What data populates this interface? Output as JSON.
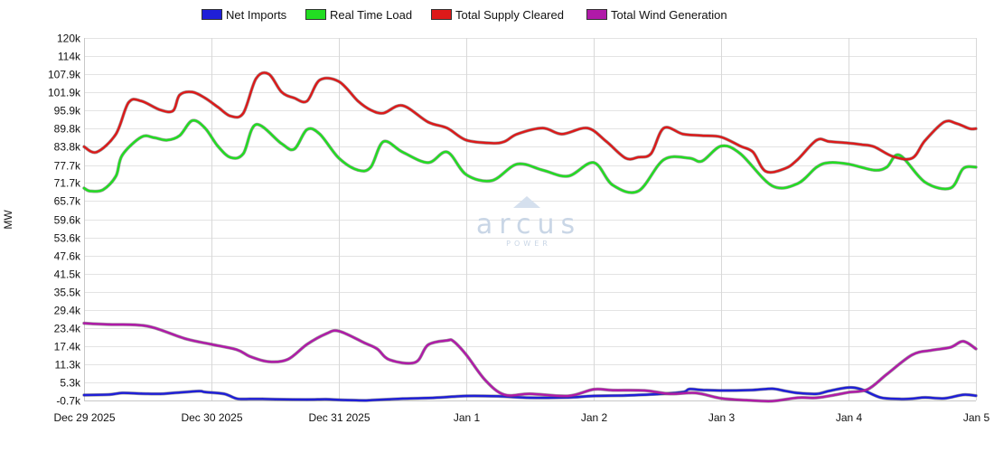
{
  "chart_data": {
    "type": "line",
    "ylabel": "MW",
    "ylim": [
      -700,
      120000
    ],
    "y_ticks": [
      "120k",
      "114k",
      "107.9k",
      "101.9k",
      "95.9k",
      "89.8k",
      "83.8k",
      "77.7k",
      "71.7k",
      "65.7k",
      "59.6k",
      "53.6k",
      "47.6k",
      "41.5k",
      "35.5k",
      "29.4k",
      "23.4k",
      "17.4k",
      "11.3k",
      "5.3k",
      "-0.7k"
    ],
    "y_tick_values": [
      120000,
      114000,
      107900,
      101900,
      95900,
      89800,
      83800,
      77700,
      71700,
      65700,
      59600,
      53600,
      47600,
      41500,
      35500,
      29400,
      23400,
      17400,
      11300,
      5300,
      -700
    ],
    "x_ticks": [
      "Dec 29 2025",
      "Dec 30 2025",
      "Dec 31 2025",
      "Jan 1",
      "Jan 2",
      "Jan 3",
      "Jan 4",
      "Jan 5"
    ],
    "x_unit": "days",
    "x_range": [
      0,
      7
    ],
    "grid": true,
    "legend_position": "top",
    "watermark": {
      "brand": "arcus",
      "tagline": "POWER"
    },
    "series": [
      {
        "name": "Net Imports",
        "color": "#1f1fd8",
        "x": [
          0,
          0.2,
          0.3,
          0.45,
          0.6,
          0.7,
          0.9,
          0.95,
          1.1,
          1.2,
          1.3,
          1.4,
          1.5,
          1.75,
          1.9,
          2.0,
          2.1,
          2.2,
          2.25,
          2.4,
          2.5,
          2.75,
          3.0,
          3.25,
          3.5,
          3.8,
          4.0,
          4.25,
          4.5,
          4.7,
          4.75,
          4.85,
          5.0,
          5.25,
          5.4,
          5.5,
          5.6,
          5.75,
          5.85,
          6.0,
          6.1,
          6.25,
          6.4,
          6.5,
          6.6,
          6.75,
          6.9,
          7.0
        ],
        "y": [
          1100,
          1300,
          1800,
          1600,
          1500,
          1800,
          2400,
          2100,
          1500,
          -100,
          -200,
          -200,
          -300,
          -400,
          -300,
          -500,
          -600,
          -700,
          -600,
          -300,
          -100,
          200,
          800,
          700,
          200,
          300,
          800,
          1000,
          1400,
          2100,
          3100,
          2800,
          2600,
          2800,
          3200,
          2500,
          1800,
          1500,
          2500,
          3600,
          3000,
          300,
          -200,
          -100,
          300,
          0,
          1200,
          900
        ]
      },
      {
        "name": "Real Time Load",
        "color": "#22dd22",
        "x": [
          0,
          0.05,
          0.15,
          0.25,
          0.3,
          0.45,
          0.55,
          0.65,
          0.75,
          0.85,
          0.95,
          1.05,
          1.15,
          1.25,
          1.35,
          1.55,
          1.65,
          1.75,
          1.85,
          2.0,
          2.15,
          2.25,
          2.35,
          2.5,
          2.7,
          2.85,
          3.0,
          3.2,
          3.4,
          3.6,
          3.8,
          4.0,
          4.15,
          4.35,
          4.55,
          4.75,
          4.85,
          5.0,
          5.15,
          5.4,
          5.6,
          5.75,
          5.85,
          6.0,
          6.2,
          6.3,
          6.4,
          6.6,
          6.8,
          6.9,
          7.0
        ],
        "y": [
          70000,
          69000,
          69500,
          74000,
          81000,
          87000,
          86800,
          86000,
          87500,
          92500,
          90000,
          84000,
          80200,
          81500,
          91200,
          84800,
          83000,
          89500,
          88000,
          80000,
          76000,
          77000,
          85500,
          82000,
          78500,
          82000,
          74500,
          72500,
          78000,
          76000,
          74000,
          78500,
          71000,
          69000,
          79500,
          80000,
          79000,
          84000,
          81500,
          70800,
          71500,
          77000,
          78500,
          78000,
          76000,
          77000,
          81000,
          72000,
          70000,
          76500,
          77000
        ]
      },
      {
        "name": "Total Supply Cleared",
        "color": "#dd1a1a",
        "x": [
          0,
          0.1,
          0.25,
          0.35,
          0.45,
          0.6,
          0.7,
          0.75,
          0.85,
          0.95,
          1.05,
          1.15,
          1.25,
          1.35,
          1.45,
          1.55,
          1.65,
          1.75,
          1.85,
          2.0,
          2.15,
          2.25,
          2.35,
          2.5,
          2.7,
          2.85,
          3.0,
          3.2,
          3.3,
          3.4,
          3.6,
          3.75,
          3.95,
          4.1,
          4.25,
          4.35,
          4.45,
          4.55,
          4.7,
          4.85,
          5.0,
          5.15,
          5.25,
          5.35,
          5.5,
          5.6,
          5.75,
          5.85,
          6.0,
          6.1,
          6.2,
          6.35,
          6.5,
          6.6,
          6.75,
          6.85,
          6.95,
          7.0
        ],
        "y": [
          83800,
          82000,
          88000,
          98500,
          99000,
          96000,
          95800,
          101000,
          102000,
          100000,
          97000,
          94000,
          95000,
          106500,
          108000,
          102000,
          100000,
          99000,
          106000,
          105500,
          99000,
          96000,
          95000,
          97500,
          92000,
          90000,
          86000,
          85000,
          85500,
          88000,
          90000,
          88000,
          90000,
          85500,
          80000,
          80300,
          81500,
          90000,
          88000,
          87500,
          87000,
          84000,
          82000,
          75600,
          76500,
          79500,
          86000,
          85500,
          85000,
          84500,
          83800,
          80500,
          80000,
          85800,
          92000,
          91500,
          89800,
          89800
        ]
      },
      {
        "name": "Total Wind Generation",
        "color": "#b01aa8",
        "x": [
          0,
          0.2,
          0.4,
          0.55,
          0.8,
          1.0,
          1.2,
          1.3,
          1.45,
          1.6,
          1.75,
          1.9,
          2.0,
          2.2,
          2.3,
          2.4,
          2.6,
          2.7,
          2.85,
          2.9,
          3.0,
          3.15,
          3.3,
          3.5,
          3.8,
          4.0,
          4.15,
          4.4,
          4.6,
          4.8,
          5.0,
          5.2,
          5.4,
          5.6,
          5.75,
          5.9,
          6.0,
          6.15,
          6.3,
          6.5,
          6.65,
          6.8,
          6.9,
          7.0
        ],
        "y": [
          25000,
          24600,
          24500,
          23500,
          19800,
          18000,
          16200,
          14000,
          12200,
          13000,
          18000,
          21500,
          22400,
          18500,
          16500,
          12800,
          12000,
          17800,
          19300,
          19000,
          14500,
          6000,
          1200,
          1500,
          800,
          3000,
          2700,
          2600,
          1500,
          1800,
          0,
          -600,
          -900,
          200,
          200,
          1200,
          2000,
          3000,
          8000,
          14500,
          16000,
          17000,
          19000,
          16500
        ]
      }
    ]
  }
}
